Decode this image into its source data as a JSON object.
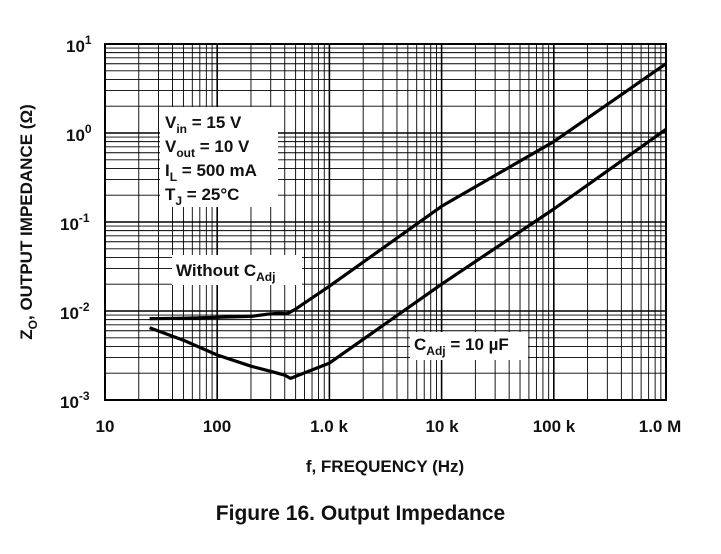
{
  "caption": "Figure 16. Output Impedance",
  "chart_data": {
    "type": "line",
    "xlabel": "f, FREQUENCY (Hz)",
    "ylabel": "Z",
    "ylabel_sub": "O",
    "ylabel_rest": ", OUTPUT IMPEDANCE (Ω)",
    "x_scale": "log",
    "y_scale": "log",
    "xlim": [
      10,
      1000000
    ],
    "ylim": [
      0.001,
      10
    ],
    "grid": true,
    "x_ticks": [
      {
        "value": 10,
        "label": "10"
      },
      {
        "value": 100,
        "label": "100"
      },
      {
        "value": 1000,
        "label": "1.0 k"
      },
      {
        "value": 10000,
        "label": "10 k"
      },
      {
        "value": 100000,
        "label": "100 k"
      },
      {
        "value": 1000000,
        "label": "1.0 M"
      }
    ],
    "y_ticks": [
      {
        "value": 0.001,
        "base": "10",
        "exp": "-3"
      },
      {
        "value": 0.01,
        "base": "10",
        "exp": "-2"
      },
      {
        "value": 0.1,
        "base": "10",
        "exp": "-1"
      },
      {
        "value": 1,
        "base": "10",
        "exp": "0"
      },
      {
        "value": 10,
        "base": "10",
        "exp": "1"
      }
    ],
    "conditions": [
      {
        "main": "V",
        "sub": "in",
        "rest": " = 15 V"
      },
      {
        "main": "V",
        "sub": "out",
        "rest": " = 10 V"
      },
      {
        "main": "I",
        "sub": "L",
        "rest": " = 500 mA"
      },
      {
        "main": "T",
        "sub": "J",
        "rest": " = 25°C"
      }
    ],
    "series": [
      {
        "label_main": "Without C",
        "label_sub": "Adj",
        "x": [
          25,
          50,
          100,
          200,
          280,
          350,
          420,
          500,
          1000,
          10000,
          100000,
          1000000
        ],
        "y": [
          0.0082,
          0.0083,
          0.0085,
          0.0087,
          0.0092,
          0.0094,
          0.0093,
          0.0105,
          0.019,
          0.15,
          0.8,
          6.0
        ]
      },
      {
        "label_main": "C",
        "label_sub": "Adj",
        "label_rest": " = 10 µF",
        "x": [
          25,
          50,
          100,
          200,
          300,
          400,
          450,
          1000,
          10000,
          100000,
          1000000
        ],
        "y": [
          0.0065,
          0.0047,
          0.0032,
          0.0024,
          0.0021,
          0.0019,
          0.00175,
          0.0026,
          0.02,
          0.14,
          1.1
        ]
      }
    ]
  }
}
